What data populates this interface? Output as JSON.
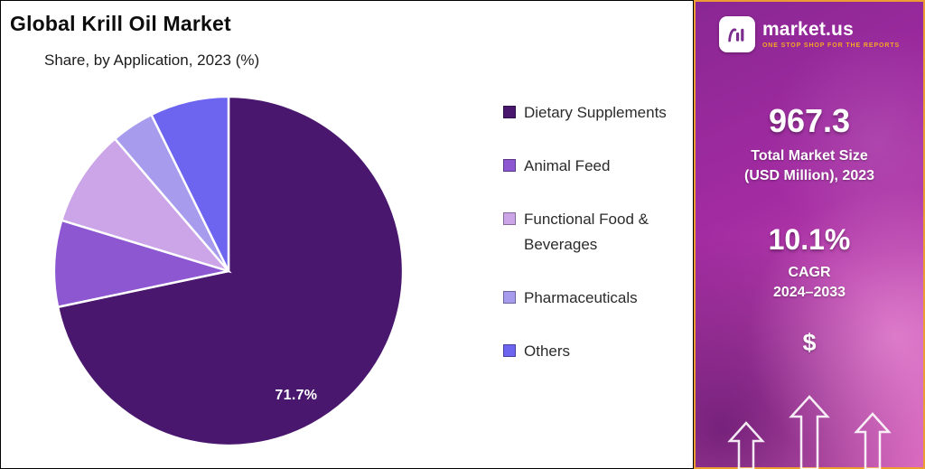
{
  "chart_data": {
    "type": "pie",
    "title": "Global Krill Oil Market",
    "subtitle": "Share, by Application, 2023 (%)",
    "labels": [
      "Dietary Supplements",
      "Animal Feed",
      "Functional Food & Beverages",
      "Pharmaceuticals",
      "Others"
    ],
    "values": [
      71.7,
      8.0,
      9.0,
      4.0,
      7.3
    ],
    "colors": [
      "#4A176E",
      "#8C57D0",
      "#CCA4E8",
      "#A79BEE",
      "#6D64F0"
    ],
    "value_label": "71.7%",
    "value_suffix": "%",
    "start_angle_deg": 0,
    "direction": "clockwise",
    "legend_position": "right"
  },
  "panel": {
    "brand_name": "market.us",
    "brand_tagline": "ONE STOP SHOP FOR THE REPORTS",
    "market_size_value": "967.3",
    "market_size_label_line1": "Total Market Size",
    "market_size_label_line2": "(USD Million), 2023",
    "cagr_value": "10.1%",
    "cagr_label_line1": "CAGR",
    "cagr_label_line2": "2024–2033",
    "dollar_symbol": "$",
    "accent_color": "#ED9B33"
  }
}
